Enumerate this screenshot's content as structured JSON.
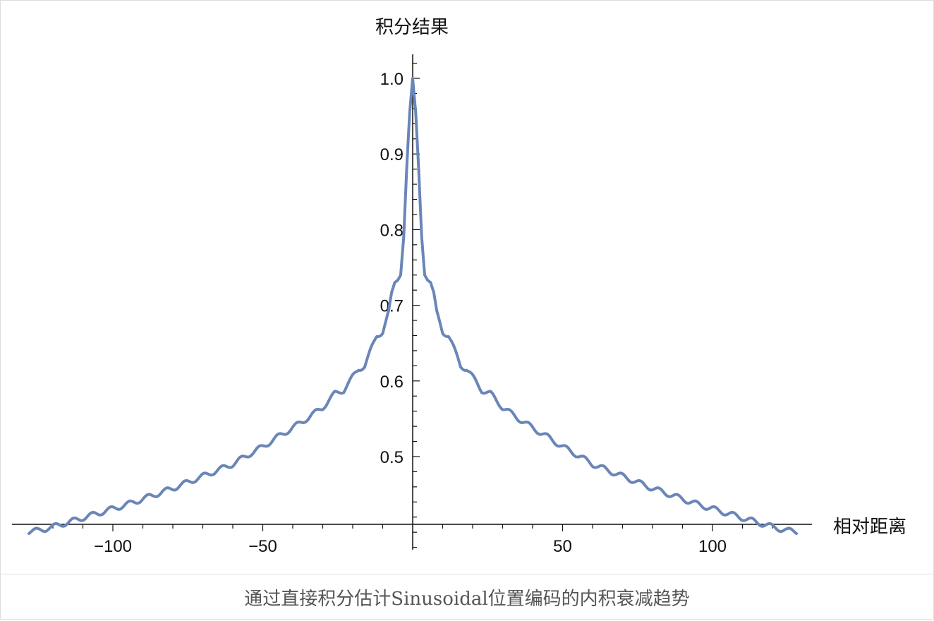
{
  "caption": "通过直接积分估计Sinusoidal位置编码的内积衰减趋势",
  "chart_data": {
    "type": "line",
    "title": "",
    "xlabel": "相对距离",
    "ylabel": "积分结果",
    "xlim": [
      -130,
      130
    ],
    "ylim": [
      0.4,
      1.0
    ],
    "x_ticks": [
      -100,
      -50,
      50,
      100
    ],
    "x_tick_labels": [
      "−100",
      "−50",
      "50",
      "100"
    ],
    "y_ticks": [
      0.5,
      0.6,
      0.7,
      0.8,
      0.9,
      1.0
    ],
    "y_tick_labels": [
      "0.5",
      "0.6",
      "0.7",
      "0.8",
      "0.9",
      "1.0"
    ],
    "grid": false,
    "line_color": "#6a86b8",
    "series": [
      {
        "x": [
          0,
          1,
          2,
          3,
          4,
          5,
          6,
          7,
          8,
          10,
          12,
          14,
          16,
          18,
          20,
          23,
          26,
          30,
          35,
          40,
          45,
          50,
          55,
          60,
          65,
          70,
          75,
          80,
          85,
          90,
          95,
          100,
          105,
          110,
          115,
          120,
          125,
          128
        ],
        "y": [
          1.0,
          0.955,
          0.88,
          0.79,
          0.74,
          0.733,
          0.73,
          0.715,
          0.69,
          0.665,
          0.66,
          0.64,
          0.62,
          0.616,
          0.605,
          0.588,
          0.583,
          0.565,
          0.551,
          0.538,
          0.526,
          0.513,
          0.502,
          0.49,
          0.482,
          0.474,
          0.466,
          0.458,
          0.451,
          0.444,
          0.437,
          0.431,
          0.425,
          0.419,
          0.413,
          0.407,
          0.402,
          0.401
        ]
      }
    ]
  }
}
